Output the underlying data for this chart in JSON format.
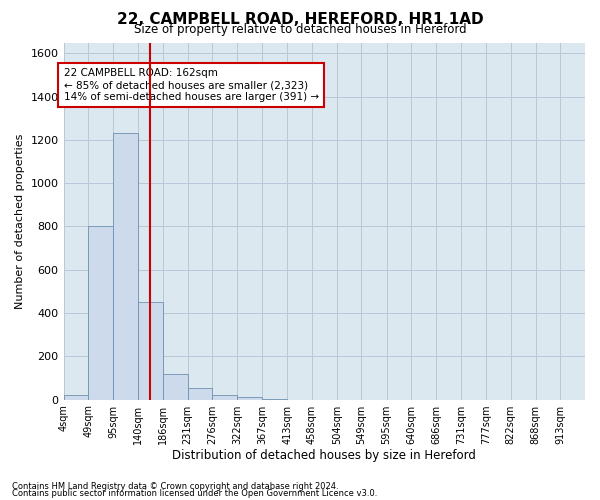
{
  "title": "22, CAMPBELL ROAD, HEREFORD, HR1 1AD",
  "subtitle": "Size of property relative to detached houses in Hereford",
  "xlabel": "Distribution of detached houses by size in Hereford",
  "ylabel": "Number of detached properties",
  "footer1": "Contains HM Land Registry data © Crown copyright and database right 2024.",
  "footer2": "Contains public sector information licensed under the Open Government Licence v3.0.",
  "bin_labels": [
    "4sqm",
    "49sqm",
    "95sqm",
    "140sqm",
    "186sqm",
    "231sqm",
    "276sqm",
    "322sqm",
    "367sqm",
    "413sqm",
    "458sqm",
    "504sqm",
    "549sqm",
    "595sqm",
    "640sqm",
    "686sqm",
    "731sqm",
    "777sqm",
    "822sqm",
    "868sqm",
    "913sqm"
  ],
  "bar_values": [
    20,
    800,
    1230,
    450,
    120,
    55,
    20,
    10,
    5,
    0,
    0,
    0,
    0,
    0,
    0,
    0,
    0,
    0,
    0,
    0,
    0
  ],
  "bar_color": "#cddaeb",
  "bar_edgecolor": "#7090b0",
  "ylim": [
    0,
    1650
  ],
  "yticks": [
    0,
    200,
    400,
    600,
    800,
    1000,
    1200,
    1400,
    1600
  ],
  "grid_color": "#b8c8d8",
  "bg_color": "#dce8f0",
  "property_line_x": 162,
  "property_line_color": "#cc0000",
  "annotation_text": "22 CAMPBELL ROAD: 162sqm\n← 85% of detached houses are smaller (2,323)\n14% of semi-detached houses are larger (391) →",
  "annotation_box_color": "#cc0000",
  "bin_edges": [
    4,
    49,
    95,
    140,
    186,
    231,
    276,
    322,
    367,
    413,
    458,
    504,
    549,
    595,
    640,
    686,
    731,
    777,
    822,
    868,
    913,
    958
  ]
}
